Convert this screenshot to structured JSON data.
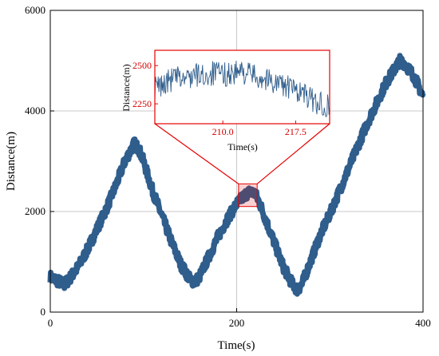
{
  "chart_data": {
    "type": "line",
    "xlabel": "Time(s)",
    "ylabel": "Distance(m)",
    "xlim": [
      0,
      400
    ],
    "ylim": [
      0,
      6000
    ],
    "x_ticks": [
      "0",
      "200",
      "400"
    ],
    "y_ticks": [
      "0",
      "2000",
      "4000",
      "6000"
    ],
    "grid": true,
    "line_color": "#2f5d8c",
    "series": [
      {
        "x": [
          0,
          10,
          15,
          20,
          30,
          40,
          50,
          60,
          70,
          80,
          90,
          95,
          100,
          110,
          120,
          130,
          140,
          150,
          155,
          160,
          170,
          180,
          190,
          200,
          205,
          210,
          215,
          220,
          225,
          230,
          240,
          250,
          260,
          265,
          270,
          280,
          290,
          300,
          310,
          320,
          330,
          340,
          350,
          360,
          370,
          375,
          380,
          390,
          400
        ],
        "y": [
          700,
          600,
          550,
          650,
          900,
          1250,
          1650,
          2050,
          2500,
          3000,
          3350,
          3250,
          3000,
          2400,
          1900,
          1400,
          950,
          650,
          600,
          700,
          1100,
          1500,
          1850,
          2150,
          2250,
          2350,
          2400,
          2350,
          2150,
          1900,
          1400,
          900,
          550,
          450,
          550,
          1050,
          1550,
          1950,
          2400,
          2850,
          3300,
          3750,
          4150,
          4550,
          4850,
          5000,
          4950,
          4700,
          4300
        ]
      }
    ],
    "inset": {
      "xlabel": "Time(s)",
      "ylabel": "Distance(m)",
      "xlim": [
        203,
        221
      ],
      "ylim": [
        2120,
        2600
      ],
      "x_ticks": [
        "210.0",
        "217.5"
      ],
      "y_ticks": [
        "2250",
        "2500"
      ],
      "zoom_xlim": [
        202,
        222
      ],
      "zoom_ylim": [
        2100,
        2550
      ],
      "accent_color": "#e60000",
      "series": {
        "x": [
          203,
          204,
          205,
          206,
          207,
          208,
          209,
          210,
          211,
          212,
          213,
          214,
          215,
          216,
          217,
          218,
          219,
          220,
          221
        ],
        "y": [
          2350,
          2380,
          2420,
          2410,
          2440,
          2430,
          2450,
          2440,
          2450,
          2460,
          2440,
          2420,
          2400,
          2380,
          2350,
          2330,
          2280,
          2250,
          2240
        ]
      }
    }
  }
}
